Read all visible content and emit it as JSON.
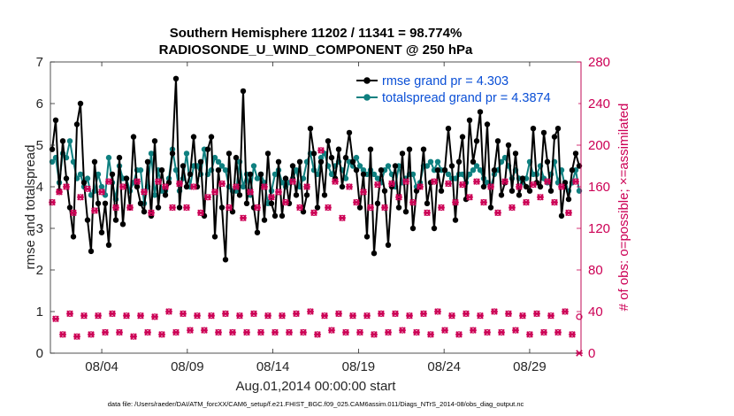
{
  "chart_data": {
    "type": "line",
    "title": "Southern Hemisphere 11202 / 11341 = 98.774%",
    "subtitle": "RADIOSONDE_U_WIND_COMPONENT @ 250 hPa",
    "xlabel": "Aug.01,2014 00:00:00 start",
    "ylabel_left": "rmse and totalspread",
    "ylabel_right": "# of obs: o=possible; ×=assimilated",
    "footer": "data file: /Users/raeder/DAI/ATM_forcXX/CAM6_setup/f.e21.FHIST_BGC.f09_025.CAM6assim.011/Diags_NTrS_2014-08/obs_diag_output.nc",
    "xlim": [
      0.5,
      31.5
    ],
    "ylim_left": [
      0,
      7
    ],
    "ylim_right": [
      0,
      280
    ],
    "x_ticks": [
      3.5,
      8.5,
      13.5,
      18.5,
      23.5,
      28.5
    ],
    "x_tick_labels": [
      "08/04",
      "08/09",
      "08/14",
      "08/19",
      "08/24",
      "08/29"
    ],
    "y_ticks_left": [
      0,
      1,
      2,
      3,
      4,
      5,
      6,
      7
    ],
    "y_tick_labels_left": [
      "0",
      "1",
      "2",
      "3",
      "4",
      "5",
      "6",
      "7"
    ],
    "y_ticks_right": [
      0,
      40,
      80,
      120,
      160,
      200,
      240,
      280
    ],
    "y_tick_labels_right": [
      "0",
      "40",
      "80",
      "120",
      "160",
      "200",
      "240",
      "280"
    ],
    "colors": {
      "rmse": "#000000",
      "totalspread": "#0f8080",
      "obs": "#cc0055",
      "legend_text": "#0a4fd6"
    },
    "series": [
      {
        "name": "rmse grand pr = 4.303",
        "axis": "left",
        "values": [
          4.9,
          5.6,
          3.9,
          5.1,
          4.2,
          3.5,
          2.8,
          5.5,
          6.0,
          4.1,
          3.2,
          2.45,
          4.6,
          3.6,
          2.9,
          3.6,
          2.6,
          4.3,
          3.2,
          4.7,
          3.1,
          4.2,
          3.5,
          5.2,
          4.0,
          3.6,
          3.4,
          4.6,
          3.3,
          5.1,
          3.5,
          4.4,
          3.8,
          4.1,
          4.8,
          6.6,
          3.5,
          4.5,
          4.0,
          4.3,
          5.2,
          4.0,
          4.6,
          3.3,
          4.9,
          5.2,
          2.8,
          4.4,
          3.5,
          2.25,
          4.8,
          3.4,
          4.7,
          3.8,
          6.3,
          3.6,
          4.3,
          3.5,
          2.9,
          4.3,
          3.2,
          4.8,
          3.6,
          3.3,
          4.6,
          3.3,
          4.2,
          3.6,
          4.5,
          3.8,
          4.6,
          3.4,
          3.8,
          5.4,
          4.8,
          3.5,
          4.6,
          3.8,
          5.1,
          4.7,
          4.2,
          4.9,
          4.0,
          4.7,
          5.3,
          4.6,
          4.4,
          3.5,
          4.3,
          2.8,
          4.9,
          2.4,
          3.6,
          4.4,
          3.9,
          2.6,
          4.0,
          4.5,
          3.5,
          4.8,
          3.4,
          4.9,
          3.0,
          3.9,
          4.0,
          4.9,
          3.6,
          4.1,
          3.0,
          4.4,
          3.9,
          4.4,
          5.4,
          4.5,
          3.2,
          4.6,
          5.2,
          3.7,
          5.6,
          4.6,
          5.1,
          5.8,
          4.0,
          5.5,
          3.5,
          4.4,
          5.1,
          3.8,
          4.1,
          5.0,
          3.9,
          4.8,
          3.8,
          4.2,
          4.0,
          3.9,
          5.4,
          4.1,
          4.0,
          5.3,
          4.6,
          3.9,
          5.2,
          5.4,
          3.3,
          4.1,
          3.7,
          4.4,
          4.8,
          4.5
        ]
      },
      {
        "name": "totalspread grand pr = 4.3874",
        "axis": "left",
        "values": [
          4.6,
          4.7,
          4.1,
          4.8,
          4.7,
          5.1,
          4.6,
          4.2,
          4.3,
          4.0,
          4.2,
          3.8,
          3.9,
          4.3,
          4.0,
          3.8,
          4.7,
          4.1,
          3.7,
          4.5,
          4.2,
          4.2,
          3.9,
          4.1,
          4.4,
          4.4,
          3.6,
          4.0,
          4.8,
          3.8,
          4.4,
          3.9,
          3.9,
          4.2,
          4.9,
          4.4,
          3.9,
          4.2,
          4.8,
          4.0,
          4.5,
          4.5,
          4.3,
          4.9,
          4.3,
          4.4,
          4.7,
          4.6,
          4.5,
          4.4,
          4.0,
          3.9,
          3.9,
          4.6,
          4.0,
          4.3,
          3.8,
          4.5,
          4.2,
          4.3,
          4.1,
          3.6,
          3.9,
          4.3,
          4.4,
          4.1,
          4.0,
          4.1,
          4.2,
          4.4,
          4.0,
          4.2,
          4.6,
          4.8,
          4.4,
          4.3,
          4.7,
          4.8,
          4.5,
          4.3,
          4.5,
          4.6,
          4.4,
          4.2,
          4.6,
          4.5,
          4.7,
          4.5,
          4.4,
          4.3,
          4.4,
          4.3,
          4.2,
          4.1,
          4.4,
          4.5,
          4.3,
          4.0,
          4.5,
          4.1,
          4.2,
          4.3,
          4.3,
          4.0,
          4.1,
          4.5,
          4.5,
          4.6,
          4.4,
          4.6,
          4.4,
          4.4,
          4.3,
          4.2,
          4.2,
          4.3,
          4.3,
          4.1,
          4.3,
          4.4,
          4.5,
          4.4,
          4.2,
          4.1,
          4.0,
          4.3,
          4.4,
          4.6,
          4.7,
          4.5,
          4.2,
          4.4,
          4.2,
          4.1,
          4.2,
          4.6,
          4.3,
          4.3,
          4.5,
          4.2,
          4.1,
          4.3,
          4.6,
          4.1,
          4.4,
          4.0,
          3.9,
          4.1,
          4.4,
          3.9
        ]
      },
      {
        "name": "# of obs possible",
        "axis": "right",
        "marker": "o",
        "values": [
          145,
          33,
          155,
          18,
          160,
          38,
          135,
          16,
          150,
          36,
          158,
          18,
          137,
          36,
          155,
          20,
          165,
          38,
          140,
          20,
          160,
          36,
          140,
          16,
          165,
          36,
          155,
          20,
          135,
          35,
          165,
          18,
          160,
          40,
          140,
          20,
          163,
          38,
          140,
          22,
          160,
          36,
          135,
          22,
          150,
          36,
          155,
          20,
          163,
          38,
          140,
          20,
          160,
          36,
          130,
          20,
          155,
          38,
          140,
          20,
          160,
          36,
          150,
          20,
          155,
          36,
          145,
          20,
          165,
          38,
          140,
          20,
          160,
          40,
          135,
          18,
          195,
          36,
          140,
          22,
          165,
          38,
          130,
          20,
          160,
          36,
          145,
          20,
          155,
          36,
          140,
          18,
          162,
          38,
          140,
          20,
          163,
          38,
          150,
          22,
          165,
          36,
          145,
          20,
          160,
          38,
          135,
          18,
          165,
          40,
          140,
          22,
          163,
          36,
          145,
          18,
          162,
          38,
          150,
          22,
          165,
          36,
          145,
          20,
          160,
          40,
          135,
          20,
          165,
          38,
          140,
          22,
          160,
          36,
          145,
          18,
          162,
          38,
          150,
          20,
          165,
          36,
          145,
          20,
          160,
          40,
          135,
          18,
          165,
          35
        ]
      },
      {
        "name": "# of obs assimilated",
        "axis": "right",
        "marker": "x",
        "values": [
          145,
          33,
          155,
          18,
          160,
          38,
          135,
          16,
          150,
          36,
          158,
          18,
          137,
          36,
          155,
          20,
          165,
          38,
          140,
          20,
          160,
          36,
          140,
          16,
          165,
          36,
          155,
          20,
          135,
          35,
          165,
          18,
          160,
          40,
          140,
          20,
          163,
          38,
          140,
          22,
          160,
          36,
          135,
          22,
          150,
          36,
          155,
          20,
          163,
          38,
          140,
          20,
          160,
          36,
          130,
          20,
          155,
          38,
          140,
          20,
          160,
          36,
          150,
          20,
          155,
          36,
          145,
          20,
          165,
          38,
          140,
          20,
          160,
          40,
          135,
          18,
          195,
          36,
          140,
          22,
          165,
          38,
          130,
          20,
          160,
          36,
          145,
          20,
          155,
          36,
          140,
          18,
          162,
          38,
          140,
          20,
          163,
          38,
          150,
          22,
          165,
          36,
          145,
          20,
          160,
          38,
          135,
          18,
          165,
          40,
          140,
          22,
          163,
          36,
          145,
          18,
          162,
          38,
          150,
          22,
          165,
          36,
          145,
          20,
          160,
          40,
          135,
          20,
          165,
          38,
          140,
          22,
          160,
          36,
          145,
          18,
          162,
          38,
          150,
          20,
          165,
          36,
          145,
          20,
          160,
          40,
          135,
          18,
          165,
          0
        ]
      }
    ]
  }
}
